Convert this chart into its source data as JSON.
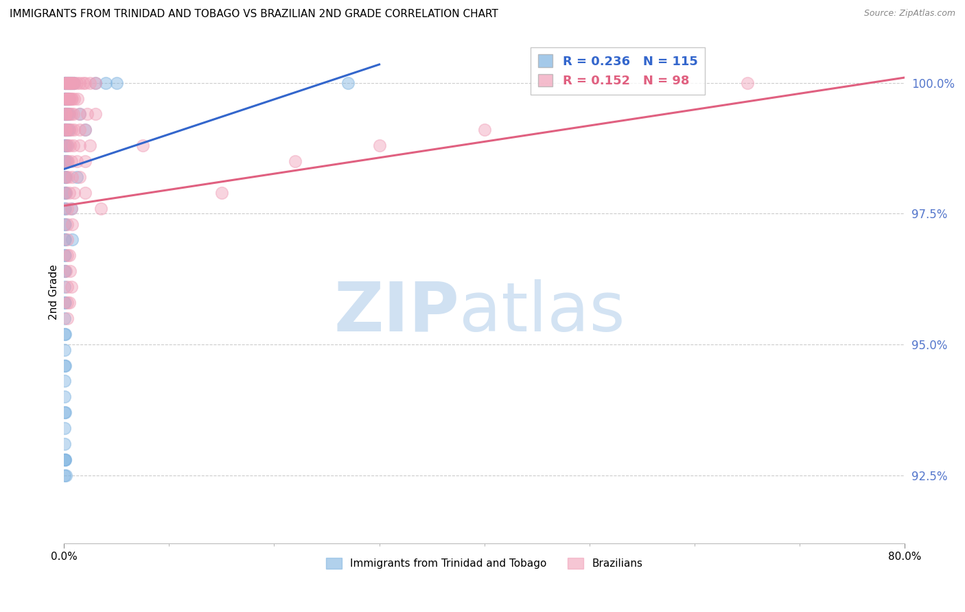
{
  "title": "IMMIGRANTS FROM TRINIDAD AND TOBAGO VS BRAZILIAN 2ND GRADE CORRELATION CHART",
  "source": "Source: ZipAtlas.com",
  "ylabel": "2nd Grade",
  "yticks": [
    92.5,
    95.0,
    97.5,
    100.0
  ],
  "ytick_labels": [
    "92.5%",
    "95.0%",
    "97.5%",
    "100.0%"
  ],
  "xmin": 0.0,
  "xmax": 80.0,
  "ymin": 91.2,
  "ymax": 100.8,
  "blue_color": "#7EB3E0",
  "pink_color": "#F0A0B8",
  "blue_line_color": "#3366CC",
  "pink_line_color": "#E06080",
  "legend_blue_R": "0.236",
  "legend_blue_N": "115",
  "legend_pink_R": "0.152",
  "legend_pink_N": "98",
  "legend_label_blue": "Immigrants from Trinidad and Tobago",
  "legend_label_pink": "Brazilians",
  "title_fontsize": 11,
  "axis_label_color": "#5577CC",
  "grid_color": "#CCCCCC",
  "blue_scatter": [
    [
      0.05,
      100.0
    ],
    [
      0.1,
      100.0
    ],
    [
      0.15,
      100.0
    ],
    [
      0.2,
      100.0
    ],
    [
      0.25,
      100.0
    ],
    [
      0.3,
      100.0
    ],
    [
      0.35,
      100.0
    ],
    [
      0.4,
      100.0
    ],
    [
      0.45,
      100.0
    ],
    [
      0.5,
      100.0
    ],
    [
      0.55,
      100.0
    ],
    [
      0.6,
      100.0
    ],
    [
      0.65,
      100.0
    ],
    [
      0.7,
      100.0
    ],
    [
      0.75,
      100.0
    ],
    [
      0.8,
      100.0
    ],
    [
      0.9,
      100.0
    ],
    [
      1.0,
      100.0
    ],
    [
      27.0,
      100.0
    ],
    [
      0.05,
      99.7
    ],
    [
      0.1,
      99.7
    ],
    [
      0.15,
      99.7
    ],
    [
      0.2,
      99.7
    ],
    [
      0.25,
      99.7
    ],
    [
      0.3,
      99.7
    ],
    [
      0.35,
      99.7
    ],
    [
      0.4,
      99.7
    ],
    [
      0.5,
      99.7
    ],
    [
      0.05,
      99.4
    ],
    [
      0.1,
      99.4
    ],
    [
      0.15,
      99.4
    ],
    [
      0.2,
      99.4
    ],
    [
      0.25,
      99.4
    ],
    [
      0.3,
      99.4
    ],
    [
      0.35,
      99.4
    ],
    [
      0.5,
      99.4
    ],
    [
      0.05,
      99.1
    ],
    [
      0.1,
      99.1
    ],
    [
      0.15,
      99.1
    ],
    [
      0.2,
      99.1
    ],
    [
      0.3,
      99.1
    ],
    [
      0.4,
      99.1
    ],
    [
      0.5,
      99.1
    ],
    [
      0.05,
      98.8
    ],
    [
      0.1,
      98.8
    ],
    [
      0.15,
      98.8
    ],
    [
      0.2,
      98.8
    ],
    [
      0.3,
      98.8
    ],
    [
      0.05,
      98.5
    ],
    [
      0.1,
      98.5
    ],
    [
      0.2,
      98.5
    ],
    [
      0.3,
      98.5
    ],
    [
      0.05,
      98.2
    ],
    [
      0.1,
      98.2
    ],
    [
      0.2,
      98.2
    ],
    [
      0.05,
      97.9
    ],
    [
      0.1,
      97.9
    ],
    [
      0.2,
      97.9
    ],
    [
      0.05,
      97.6
    ],
    [
      0.1,
      97.6
    ],
    [
      0.05,
      97.3
    ],
    [
      0.15,
      97.3
    ],
    [
      0.05,
      97.0
    ],
    [
      0.1,
      97.0
    ],
    [
      0.05,
      96.7
    ],
    [
      0.15,
      96.7
    ],
    [
      0.05,
      96.4
    ],
    [
      0.1,
      96.4
    ],
    [
      0.05,
      96.1
    ],
    [
      0.05,
      95.8
    ],
    [
      0.1,
      95.8
    ],
    [
      0.05,
      95.5
    ],
    [
      0.05,
      95.2
    ],
    [
      0.1,
      95.2
    ],
    [
      0.05,
      94.9
    ],
    [
      0.05,
      94.6
    ],
    [
      0.1,
      94.6
    ],
    [
      0.05,
      94.3
    ],
    [
      0.05,
      94.0
    ],
    [
      0.05,
      93.7
    ],
    [
      0.1,
      93.7
    ],
    [
      0.05,
      93.4
    ],
    [
      0.05,
      93.1
    ],
    [
      0.05,
      92.8
    ],
    [
      0.1,
      92.8
    ],
    [
      0.05,
      92.5
    ],
    [
      3.0,
      100.0
    ],
    [
      4.0,
      100.0
    ],
    [
      5.0,
      100.0
    ],
    [
      1.5,
      99.4
    ],
    [
      2.0,
      99.1
    ],
    [
      0.7,
      97.6
    ],
    [
      0.8,
      97.0
    ],
    [
      1.2,
      98.2
    ],
    [
      0.15,
      92.8
    ],
    [
      0.2,
      92.5
    ]
  ],
  "pink_scatter": [
    [
      0.1,
      100.0
    ],
    [
      0.2,
      100.0
    ],
    [
      0.3,
      100.0
    ],
    [
      0.4,
      100.0
    ],
    [
      0.5,
      100.0
    ],
    [
      0.6,
      100.0
    ],
    [
      0.7,
      100.0
    ],
    [
      0.8,
      100.0
    ],
    [
      0.9,
      100.0
    ],
    [
      1.0,
      100.0
    ],
    [
      1.2,
      100.0
    ],
    [
      1.5,
      100.0
    ],
    [
      1.8,
      100.0
    ],
    [
      2.0,
      100.0
    ],
    [
      2.5,
      100.0
    ],
    [
      3.0,
      100.0
    ],
    [
      65.0,
      100.0
    ],
    [
      0.1,
      99.7
    ],
    [
      0.2,
      99.7
    ],
    [
      0.3,
      99.7
    ],
    [
      0.4,
      99.7
    ],
    [
      0.5,
      99.7
    ],
    [
      0.6,
      99.7
    ],
    [
      0.7,
      99.7
    ],
    [
      0.8,
      99.7
    ],
    [
      1.0,
      99.7
    ],
    [
      1.3,
      99.7
    ],
    [
      0.1,
      99.4
    ],
    [
      0.2,
      99.4
    ],
    [
      0.3,
      99.4
    ],
    [
      0.5,
      99.4
    ],
    [
      0.7,
      99.4
    ],
    [
      0.9,
      99.4
    ],
    [
      1.5,
      99.4
    ],
    [
      2.2,
      99.4
    ],
    [
      3.0,
      99.4
    ],
    [
      0.1,
      99.1
    ],
    [
      0.2,
      99.1
    ],
    [
      0.3,
      99.1
    ],
    [
      0.5,
      99.1
    ],
    [
      0.7,
      99.1
    ],
    [
      1.0,
      99.1
    ],
    [
      1.5,
      99.1
    ],
    [
      2.0,
      99.1
    ],
    [
      0.2,
      98.8
    ],
    [
      0.4,
      98.8
    ],
    [
      0.6,
      98.8
    ],
    [
      0.9,
      98.8
    ],
    [
      1.5,
      98.8
    ],
    [
      2.5,
      98.8
    ],
    [
      7.5,
      98.8
    ],
    [
      0.2,
      98.5
    ],
    [
      0.4,
      98.5
    ],
    [
      0.7,
      98.5
    ],
    [
      1.2,
      98.5
    ],
    [
      2.0,
      98.5
    ],
    [
      0.2,
      98.2
    ],
    [
      0.4,
      98.2
    ],
    [
      0.8,
      98.2
    ],
    [
      1.5,
      98.2
    ],
    [
      0.2,
      97.9
    ],
    [
      0.5,
      97.9
    ],
    [
      1.0,
      97.9
    ],
    [
      2.0,
      97.9
    ],
    [
      0.3,
      97.6
    ],
    [
      0.7,
      97.6
    ],
    [
      3.5,
      97.6
    ],
    [
      0.3,
      97.3
    ],
    [
      0.8,
      97.3
    ],
    [
      0.3,
      97.0
    ],
    [
      0.3,
      96.7
    ],
    [
      0.5,
      96.7
    ],
    [
      0.2,
      96.4
    ],
    [
      0.6,
      96.4
    ],
    [
      0.3,
      96.1
    ],
    [
      0.7,
      96.1
    ],
    [
      0.3,
      95.8
    ],
    [
      0.5,
      95.8
    ],
    [
      0.3,
      95.5
    ],
    [
      15.0,
      97.9
    ],
    [
      22.0,
      98.5
    ],
    [
      30.0,
      98.8
    ],
    [
      40.0,
      99.1
    ]
  ],
  "blue_trend_x": [
    0.0,
    30.0
  ],
  "blue_trend_y": [
    98.35,
    100.35
  ],
  "pink_trend_x": [
    0.0,
    80.0
  ],
  "pink_trend_y": [
    97.65,
    100.1
  ]
}
